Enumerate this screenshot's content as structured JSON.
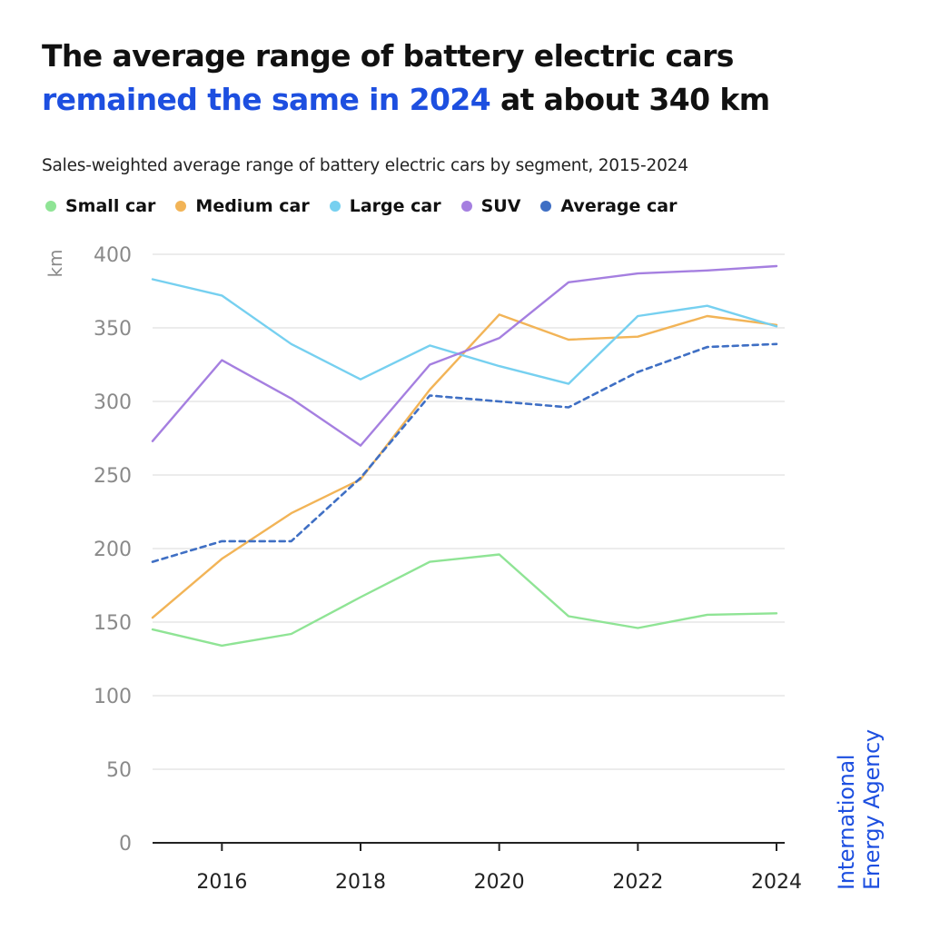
{
  "header": {
    "title_part1": "The average range of battery electric cars",
    "title_accent": "remained the same in 2024",
    "title_part2": " at about 340 km",
    "subtitle": "Sales-weighted average range of battery electric cars by segment, 2015-2024"
  },
  "brand": {
    "line1": "International",
    "line2": "Energy Agency"
  },
  "colors": {
    "accent": "#1d4fe0",
    "small": "#8fe495",
    "medium": "#f2b457",
    "large": "#76d0f0",
    "suv": "#a57fe0",
    "average": "#3f6fc4",
    "grid": "#e6e6e6",
    "axis": "#222222",
    "tick_label": "#8a8a8a"
  },
  "chart_data": {
    "type": "line",
    "ylabel": "km",
    "ylim": [
      0,
      400
    ],
    "xlim": [
      2015,
      2024
    ],
    "y_ticks": [
      0,
      50,
      100,
      150,
      200,
      250,
      300,
      350,
      400
    ],
    "x_ticks": [
      2016,
      2018,
      2020,
      2022,
      2024
    ],
    "grid": true,
    "legend_position": "top",
    "x": [
      2015,
      2016,
      2017,
      2018,
      2019,
      2020,
      2021,
      2022,
      2023,
      2024
    ],
    "series": [
      {
        "name": "Small car",
        "key": "small",
        "dashed": false,
        "values": [
          145,
          134,
          142,
          167,
          191,
          196,
          154,
          146,
          155,
          156
        ]
      },
      {
        "name": "Medium car",
        "key": "medium",
        "dashed": false,
        "values": [
          153,
          193,
          224,
          247,
          308,
          359,
          342,
          344,
          358,
          352
        ]
      },
      {
        "name": "Large car",
        "key": "large",
        "dashed": false,
        "values": [
          383,
          372,
          339,
          315,
          338,
          324,
          312,
          358,
          365,
          351
        ]
      },
      {
        "name": "SUV",
        "key": "suv",
        "dashed": false,
        "values": [
          273,
          328,
          302,
          270,
          325,
          343,
          381,
          387,
          389,
          392
        ]
      },
      {
        "name": "Average car",
        "key": "average",
        "dashed": true,
        "values": [
          191,
          205,
          205,
          248,
          304,
          300,
          296,
          320,
          337,
          339
        ]
      }
    ]
  }
}
